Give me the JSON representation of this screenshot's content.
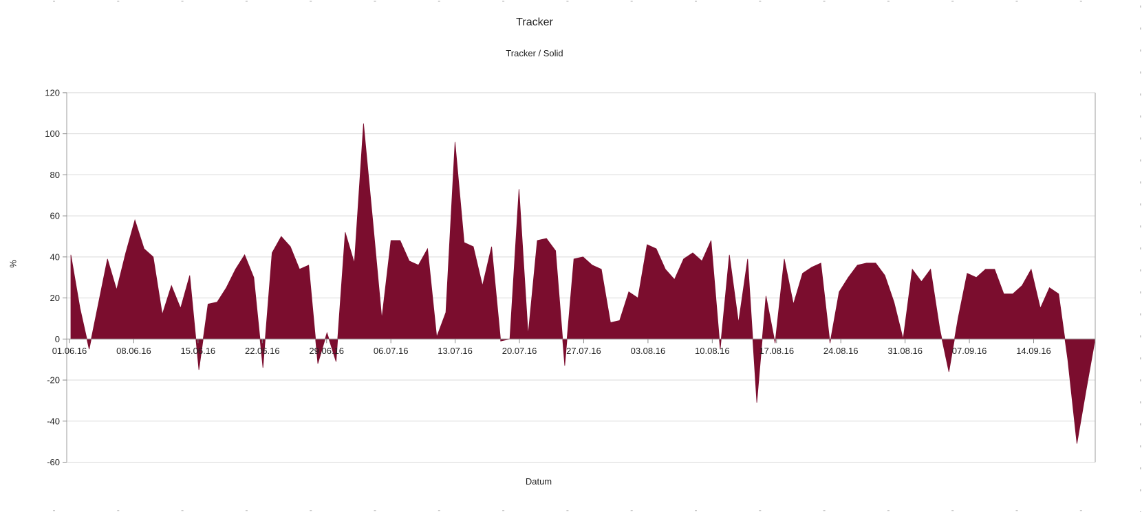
{
  "chart_data": {
    "type": "area",
    "title": "Tracker",
    "subtitle": "Tracker / Solid",
    "xlabel": "Datum",
    "ylabel": "%",
    "legend_position": "none",
    "grid": true,
    "ylim": [
      -60,
      120
    ],
    "ytick_step": 20,
    "y_tick_labels": [
      "120",
      "100",
      "80",
      "60",
      "40",
      "20",
      "0",
      "-20",
      "-40",
      "-60"
    ],
    "x_tick_labels": [
      "01.06.16",
      "08.06.16",
      "15.06.16",
      "22.06.16",
      "29.06.16",
      "06.07.16",
      "13.07.16",
      "20.07.16",
      "27.07.16",
      "03.08.16",
      "10.08.16",
      "17.08.16",
      "24.08.16",
      "31.08.16",
      "07.09.16",
      "14.09.16"
    ],
    "series": [
      {
        "name": "Tracker / Solid",
        "values": [
          41,
          15,
          -5,
          17,
          39,
          24,
          42,
          58,
          44,
          40,
          12,
          26,
          15,
          31,
          -15,
          17,
          18,
          25,
          34,
          41,
          30,
          -14,
          42,
          50,
          45,
          34,
          36,
          -12,
          3,
          -11,
          52,
          37,
          105,
          58,
          10,
          48,
          48,
          38,
          36,
          44,
          1,
          13,
          96,
          47,
          45,
          26,
          45,
          -1,
          0,
          73,
          2,
          48,
          49,
          43,
          -13,
          39,
          40,
          36,
          34,
          8,
          9,
          23,
          20,
          46,
          44,
          34,
          29,
          39,
          42,
          38,
          48,
          -5,
          41,
          8,
          39,
          -31,
          21,
          -2,
          39,
          17,
          32,
          35,
          37,
          -2,
          23,
          30,
          36,
          37,
          37,
          31,
          18,
          0,
          34,
          28,
          34,
          5,
          -16,
          10,
          32,
          30,
          34,
          34,
          22,
          22,
          26,
          34,
          15,
          25,
          22,
          -10,
          -51,
          -25,
          0
        ]
      }
    ],
    "colors": {
      "fill": "#7b0d2e",
      "grid": "#d9d9d9",
      "axis": "#9e9e9e",
      "tick": "#8a8a8a",
      "text": "#222222",
      "edge_marks": "#c6c6c6"
    }
  }
}
